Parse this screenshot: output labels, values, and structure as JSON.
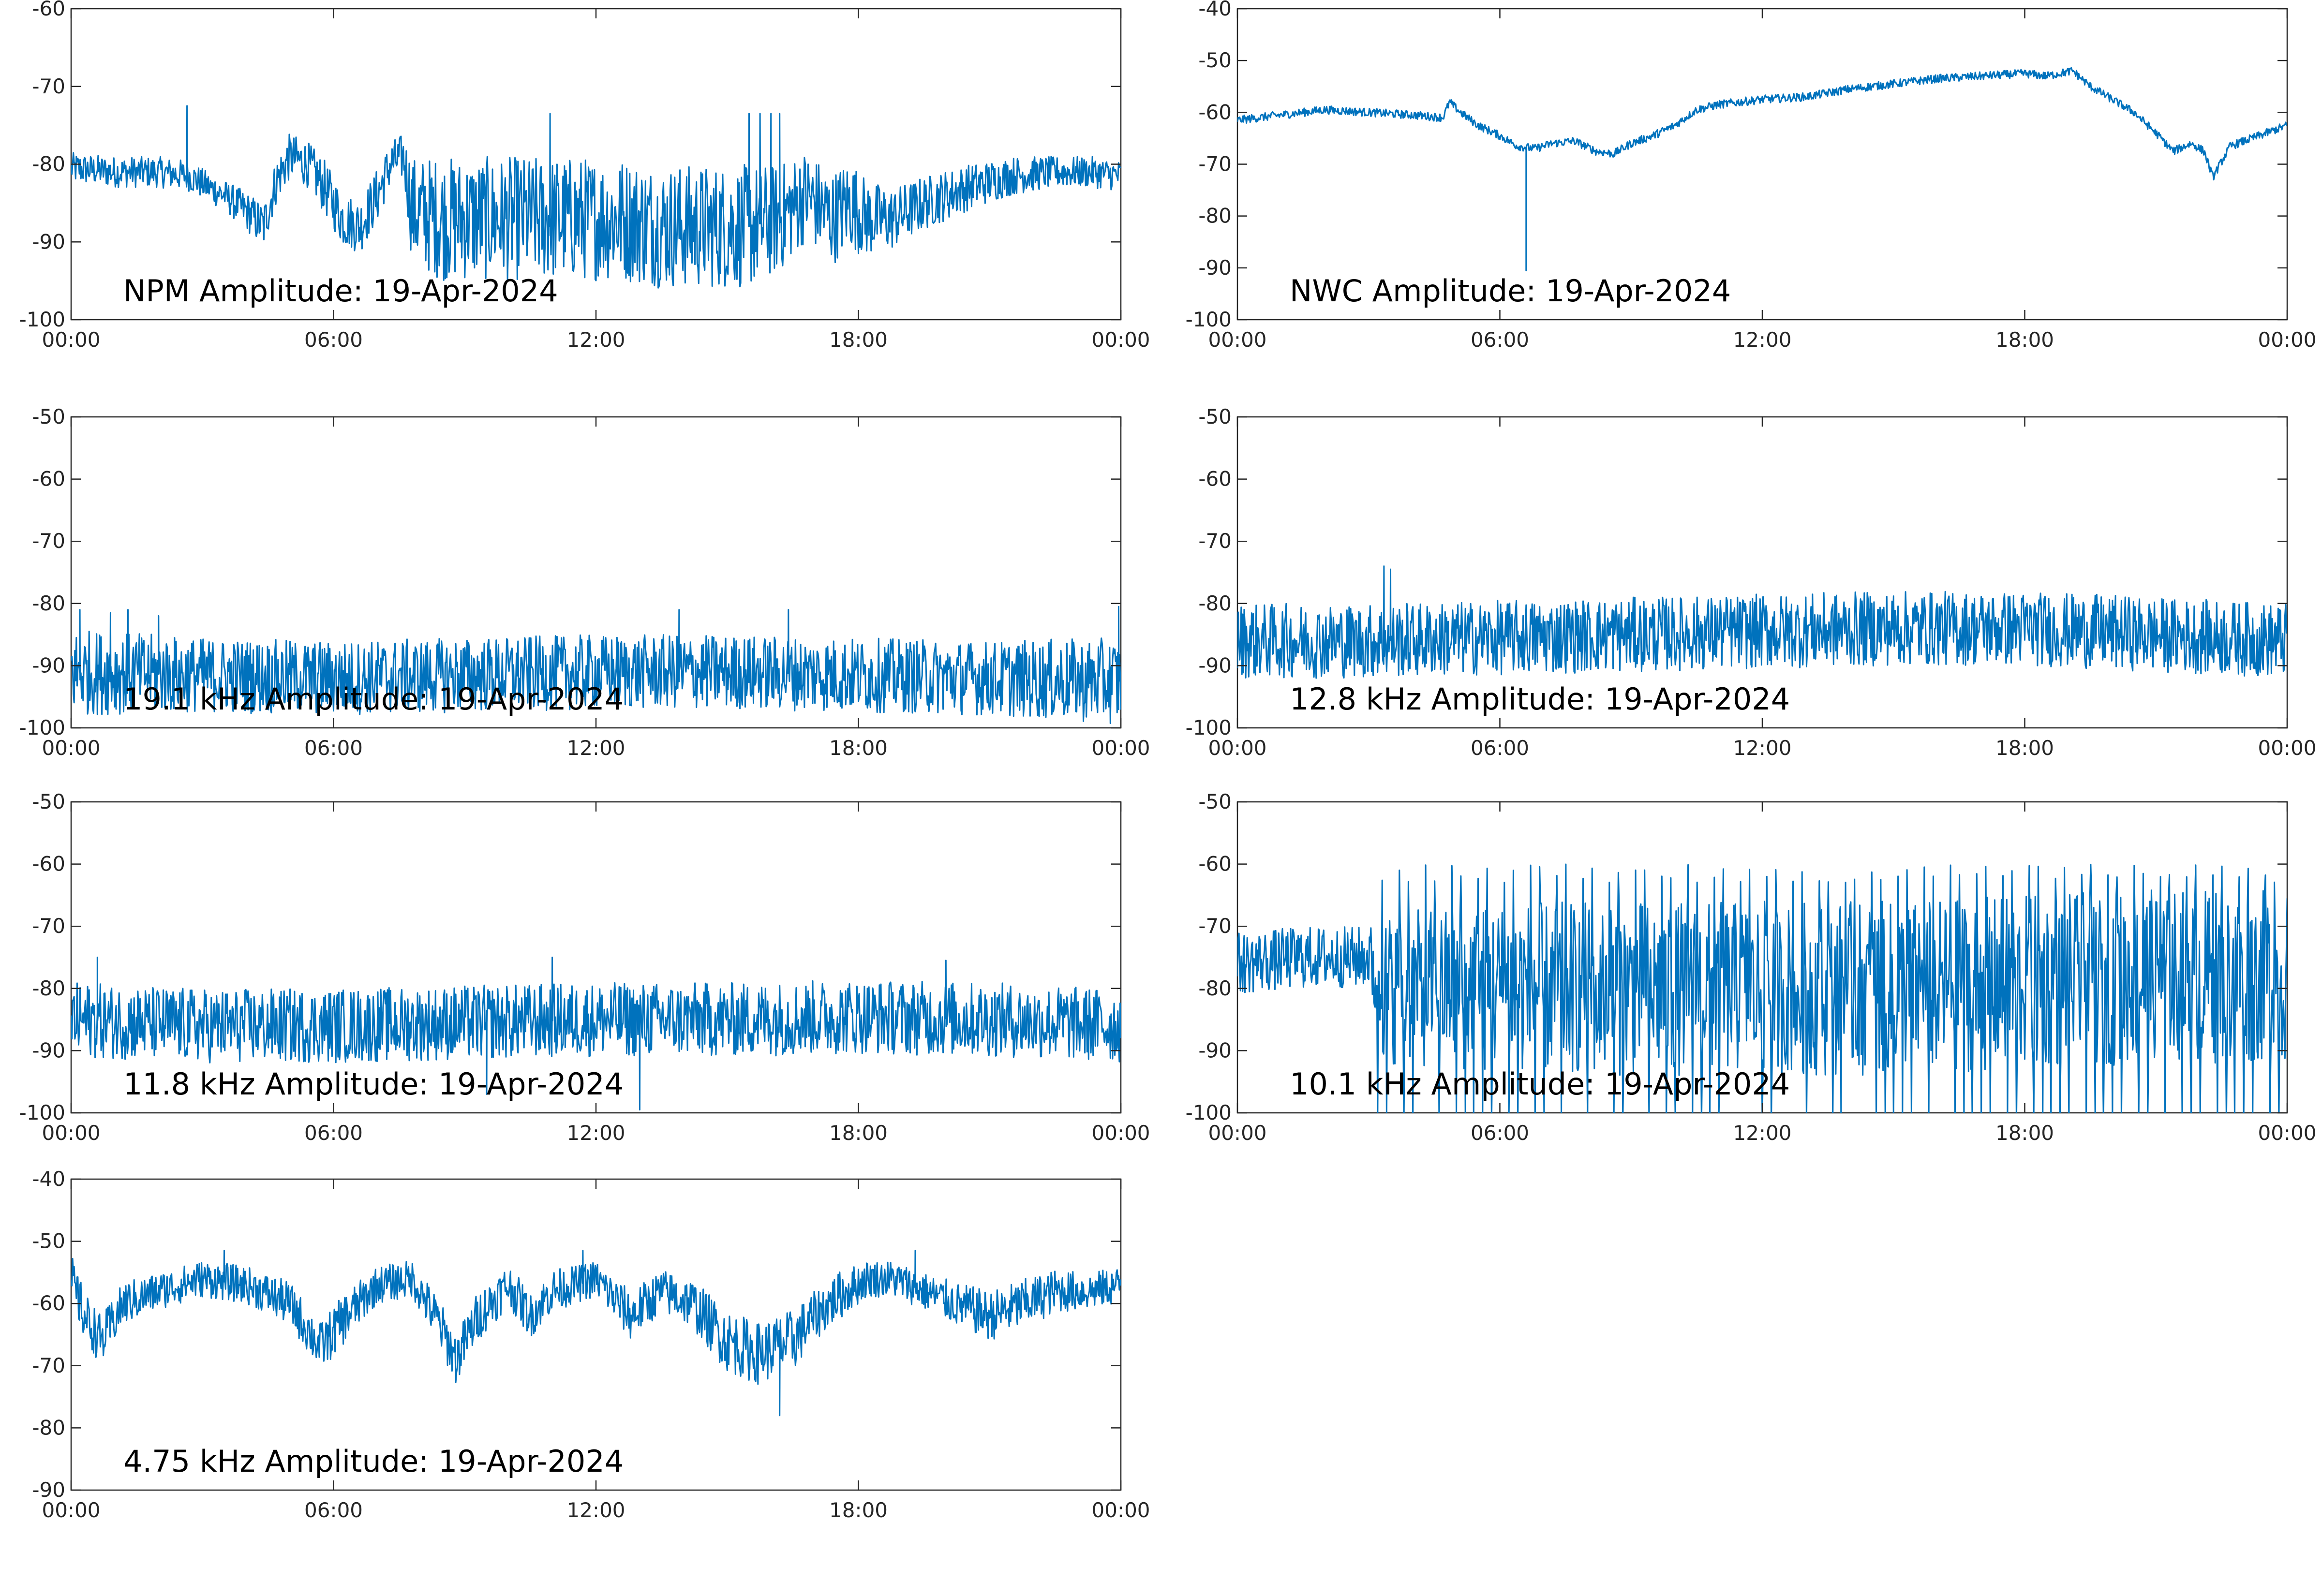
{
  "chart_data": [
    {
      "type": "line",
      "title": "NPM Amplitude: 19-Apr-2024",
      "xlabel": "",
      "ylabel": "",
      "xlim": [
        0,
        24
      ],
      "ylim": [
        -100,
        -60
      ],
      "yticks": [
        "-100",
        "-90",
        "-80",
        "-70",
        "-60"
      ],
      "xticks": [
        "00:00",
        "06:00",
        "12:00",
        "18:00",
        "00:00"
      ],
      "grid": false,
      "color": "#0072BD",
      "series": [
        {
          "x": [
            0,
            1,
            2,
            2.7,
            3,
            3.5,
            4,
            4.4,
            4.7,
            5,
            5.4,
            5.8,
            6.2,
            6.6,
            7,
            7.3,
            7.6,
            7.8,
            8.5,
            9.5,
            10.5,
            11.5,
            12.5,
            13.5,
            14.5,
            15.5,
            16.2,
            16.8,
            17.4,
            17.8,
            18.2,
            18.8,
            19.5,
            20.5,
            21.5,
            22.5,
            23.3,
            24
          ],
          "y": [
            -80.5,
            -81,
            -81,
            -81.5,
            -82.5,
            -84,
            -86,
            -88,
            -82,
            -79,
            -80,
            -83,
            -87,
            -88,
            -84,
            -80,
            -79,
            -86,
            -87,
            -87,
            -87,
            -87,
            -87,
            -88,
            -88,
            -88,
            -87,
            -84,
            -87,
            -85,
            -87,
            -87,
            -85,
            -83,
            -81.5,
            -81,
            -81,
            -81.5
          ],
          "noise": [
            2,
            2,
            2,
            2,
            2,
            2,
            2.5,
            3,
            3,
            3,
            3,
            3.5,
            3.5,
            3.5,
            3.5,
            3,
            3,
            7,
            8,
            8,
            8,
            8,
            8,
            8,
            8,
            8,
            7,
            6,
            6,
            6,
            5,
            4,
            3.5,
            3,
            2.5,
            2,
            2,
            2
          ],
          "spikes": [
            [
              2.65,
              -72.5
            ],
            [
              10.95,
              -73.5
            ],
            [
              15.5,
              -73.5
            ],
            [
              15.75,
              -73.5
            ],
            [
              16.0,
              -73.5
            ],
            [
              16.2,
              -73.5
            ]
          ]
        }
      ]
    },
    {
      "type": "line",
      "title": "NWC Amplitude: 19-Apr-2024",
      "xlabel": "",
      "ylabel": "",
      "xlim": [
        0,
        24
      ],
      "ylim": [
        -100,
        -40
      ],
      "yticks": [
        "-100",
        "-90",
        "-80",
        "-70",
        "-60",
        "-50",
        "-40"
      ],
      "xticks": [
        "00:00",
        "06:00",
        "12:00",
        "18:00",
        "00:00"
      ],
      "grid": false,
      "color": "#0072BD",
      "series": [
        {
          "x": [
            0,
            1,
            2,
            3,
            4,
            4.7,
            4.85,
            5.1,
            5.5,
            6,
            6.4,
            6.8,
            7.2,
            7.7,
            8.2,
            8.6,
            9,
            9.5,
            10,
            10.5,
            11,
            12,
            13,
            14,
            15,
            16,
            17,
            18,
            18.5,
            19.1,
            19.5,
            20,
            20.5,
            21,
            21.4,
            21.8,
            22.1,
            22.3,
            22.7,
            23.2,
            24
          ],
          "y": [
            -61.5,
            -60.5,
            -59.5,
            -60,
            -60.5,
            -61,
            -58,
            -60,
            -62.5,
            -64.5,
            -66.5,
            -67,
            -66,
            -65.5,
            -67.5,
            -68,
            -66,
            -64.5,
            -62.5,
            -59.5,
            -58.5,
            -57.5,
            -57,
            -55.5,
            -54.5,
            -53.5,
            -53,
            -52.5,
            -53,
            -52,
            -55,
            -57.5,
            -60,
            -64,
            -67.5,
            -66,
            -67.5,
            -72.5,
            -66.5,
            -65,
            -62.5
          ],
          "noise": [
            0.8,
            0.8,
            0.8,
            0.8,
            0.8,
            0.8,
            0.8,
            0.8,
            0.8,
            0.8,
            0.8,
            0.8,
            0.8,
            0.8,
            0.8,
            0.8,
            0.8,
            0.8,
            0.8,
            0.8,
            0.8,
            0.8,
            0.8,
            0.8,
            0.8,
            0.8,
            0.8,
            0.8,
            0.8,
            0.8,
            0.8,
            0.8,
            0.8,
            0.8,
            0.8,
            0.8,
            0.8,
            0.8,
            0.8,
            0.8,
            0.8
          ],
          "spikes": [
            [
              6.6,
              -90.5
            ]
          ]
        }
      ]
    },
    {
      "type": "line",
      "title": "19.1 kHz Amplitude: 19-Apr-2024",
      "xlabel": "",
      "ylabel": "",
      "xlim": [
        0,
        24
      ],
      "ylim": [
        -100,
        -50
      ],
      "yticks": [
        "-100",
        "-90",
        "-80",
        "-70",
        "-60",
        "-50"
      ],
      "xticks": [
        "00:00",
        "06:00",
        "12:00",
        "18:00",
        "00:00"
      ],
      "grid": false,
      "color": "#0072BD",
      "series": [
        {
          "x": [
            0,
            3,
            6,
            9,
            12,
            15,
            18,
            21,
            24
          ],
          "y": [
            -91,
            -91.5,
            -92,
            -91.5,
            -91,
            -91,
            -91.5,
            -92,
            -92.5
          ],
          "noise": [
            7,
            6,
            6,
            6,
            6,
            6,
            6,
            6,
            7
          ],
          "spikes": [
            [
              0.2,
              -81
            ],
            [
              0.9,
              -81.5
            ],
            [
              1.3,
              -81
            ],
            [
              2.0,
              -82
            ],
            [
              13.9,
              -81
            ],
            [
              16.4,
              -81
            ],
            [
              23.95,
              -80.5
            ]
          ]
        }
      ]
    },
    {
      "type": "line",
      "title": "12.8 kHz Amplitude: 19-Apr-2024",
      "xlabel": "",
      "ylabel": "",
      "xlim": [
        0,
        24
      ],
      "ylim": [
        -100,
        -50
      ],
      "yticks": [
        "-100",
        "-90",
        "-80",
        "-70",
        "-60",
        "-50"
      ],
      "xticks": [
        "00:00",
        "06:00",
        "12:00",
        "18:00",
        "00:00"
      ],
      "grid": false,
      "color": "#0072BD",
      "series": [
        {
          "x": [
            0,
            3,
            6,
            9,
            12,
            15,
            18,
            21,
            24
          ],
          "y": [
            -86,
            -86,
            -85.5,
            -85,
            -84.5,
            -84,
            -84,
            -85,
            -86
          ],
          "noise": [
            6,
            6,
            6,
            6,
            6,
            6,
            6,
            6,
            6
          ],
          "spikes": [
            [
              3.35,
              -74
            ],
            [
              3.5,
              -74.5
            ]
          ]
        }
      ]
    },
    {
      "type": "line",
      "title": "11.8 kHz Amplitude: 19-Apr-2024",
      "xlabel": "",
      "ylabel": "",
      "xlim": [
        0,
        24
      ],
      "ylim": [
        -100,
        -50
      ],
      "yticks": [
        "-100",
        "-90",
        "-80",
        "-70",
        "-60",
        "-50"
      ],
      "xticks": [
        "00:00",
        "06:00",
        "12:00",
        "18:00",
        "00:00"
      ],
      "grid": false,
      "color": "#0072BD",
      "series": [
        {
          "x": [
            0,
            3,
            6,
            9,
            12,
            15,
            18,
            21,
            24
          ],
          "y": [
            -85,
            -86,
            -86,
            -85.5,
            -85,
            -85,
            -84.5,
            -85,
            -86
          ],
          "noise": [
            6,
            6,
            6,
            6,
            6,
            6,
            6,
            6,
            6
          ],
          "spikes": [
            [
              0.6,
              -75
            ],
            [
              11,
              -75
            ],
            [
              13,
              -99.5
            ],
            [
              20,
              -75.5
            ],
            [
              9.5,
              -97
            ]
          ]
        }
      ]
    },
    {
      "type": "line",
      "title": "10.1 kHz Amplitude: 19-Apr-2024",
      "xlabel": "",
      "ylabel": "",
      "xlim": [
        0,
        24
      ],
      "ylim": [
        -100,
        -50
      ],
      "yticks": [
        "-100",
        "-90",
        "-80",
        "-70",
        "-60",
        "-50"
      ],
      "xticks": [
        "00:00",
        "06:00",
        "12:00",
        "18:00",
        "00:00"
      ],
      "grid": false,
      "color": "#0072BD",
      "series": [
        {
          "x": [
            0,
            1.5,
            3.0,
            3.3,
            6,
            9,
            12,
            15,
            18,
            21,
            24
          ],
          "y": [
            -76,
            -75,
            -75,
            -80,
            -80,
            -80,
            -80,
            -80,
            -79,
            -78,
            -78
          ],
          "noise": [
            5,
            5,
            5,
            12,
            14,
            14,
            14,
            14,
            14,
            14,
            14
          ],
          "bursts": {
            "from": 3.2,
            "to": 24,
            "every": 0.2,
            "top": -63,
            "bottom": -100
          }
        }
      ]
    },
    {
      "type": "line",
      "title": "4.75 kHz Amplitude: 19-Apr-2024",
      "xlabel": "",
      "ylabel": "",
      "xlim": [
        0,
        24
      ],
      "ylim": [
        -90,
        -40
      ],
      "yticks": [
        "-90",
        "-80",
        "-70",
        "-60",
        "-50",
        "-40"
      ],
      "xticks": [
        "00:00",
        "06:00",
        "12:00",
        "18:00",
        "00:00"
      ],
      "grid": false,
      "color": "#0072BD",
      "series": [
        {
          "x": [
            0,
            0.3,
            0.7,
            1.2,
            2,
            3,
            4,
            5,
            5.7,
            6.3,
            7,
            7.8,
            8.4,
            8.8,
            9.3,
            10,
            10.5,
            11,
            11.5,
            12,
            12.8,
            13.5,
            14.2,
            15,
            15.7,
            16.5,
            17,
            17.5,
            18.2,
            18.8,
            19.5,
            20.2,
            21,
            21.8,
            22.5,
            23.3,
            24
          ],
          "y": [
            -56,
            -62,
            -66,
            -60,
            -58,
            -56,
            -57,
            -60,
            -67,
            -62,
            -57,
            -56,
            -63,
            -69,
            -62,
            -57,
            -62,
            -58,
            -57,
            -56,
            -62,
            -58,
            -60,
            -66,
            -68,
            -66,
            -62,
            -59,
            -56,
            -56,
            -58,
            -60,
            -62,
            -60,
            -58,
            -58,
            -57
          ],
          "noise": [
            4,
            4,
            4,
            3.5,
            3,
            3,
            3,
            3.5,
            4,
            4,
            3,
            3,
            4,
            4,
            4,
            3.5,
            3.5,
            3.5,
            3,
            3,
            4,
            3.5,
            4,
            5,
            5,
            5,
            4,
            4,
            3,
            3,
            3,
            3.5,
            4,
            4,
            3.5,
            3,
            3
          ],
          "spikes": [
            [
              3.5,
              -51.5
            ],
            [
              11.7,
              -51.5
            ],
            [
              16.2,
              -78
            ],
            [
              19.3,
              -51.5
            ]
          ]
        }
      ]
    }
  ]
}
